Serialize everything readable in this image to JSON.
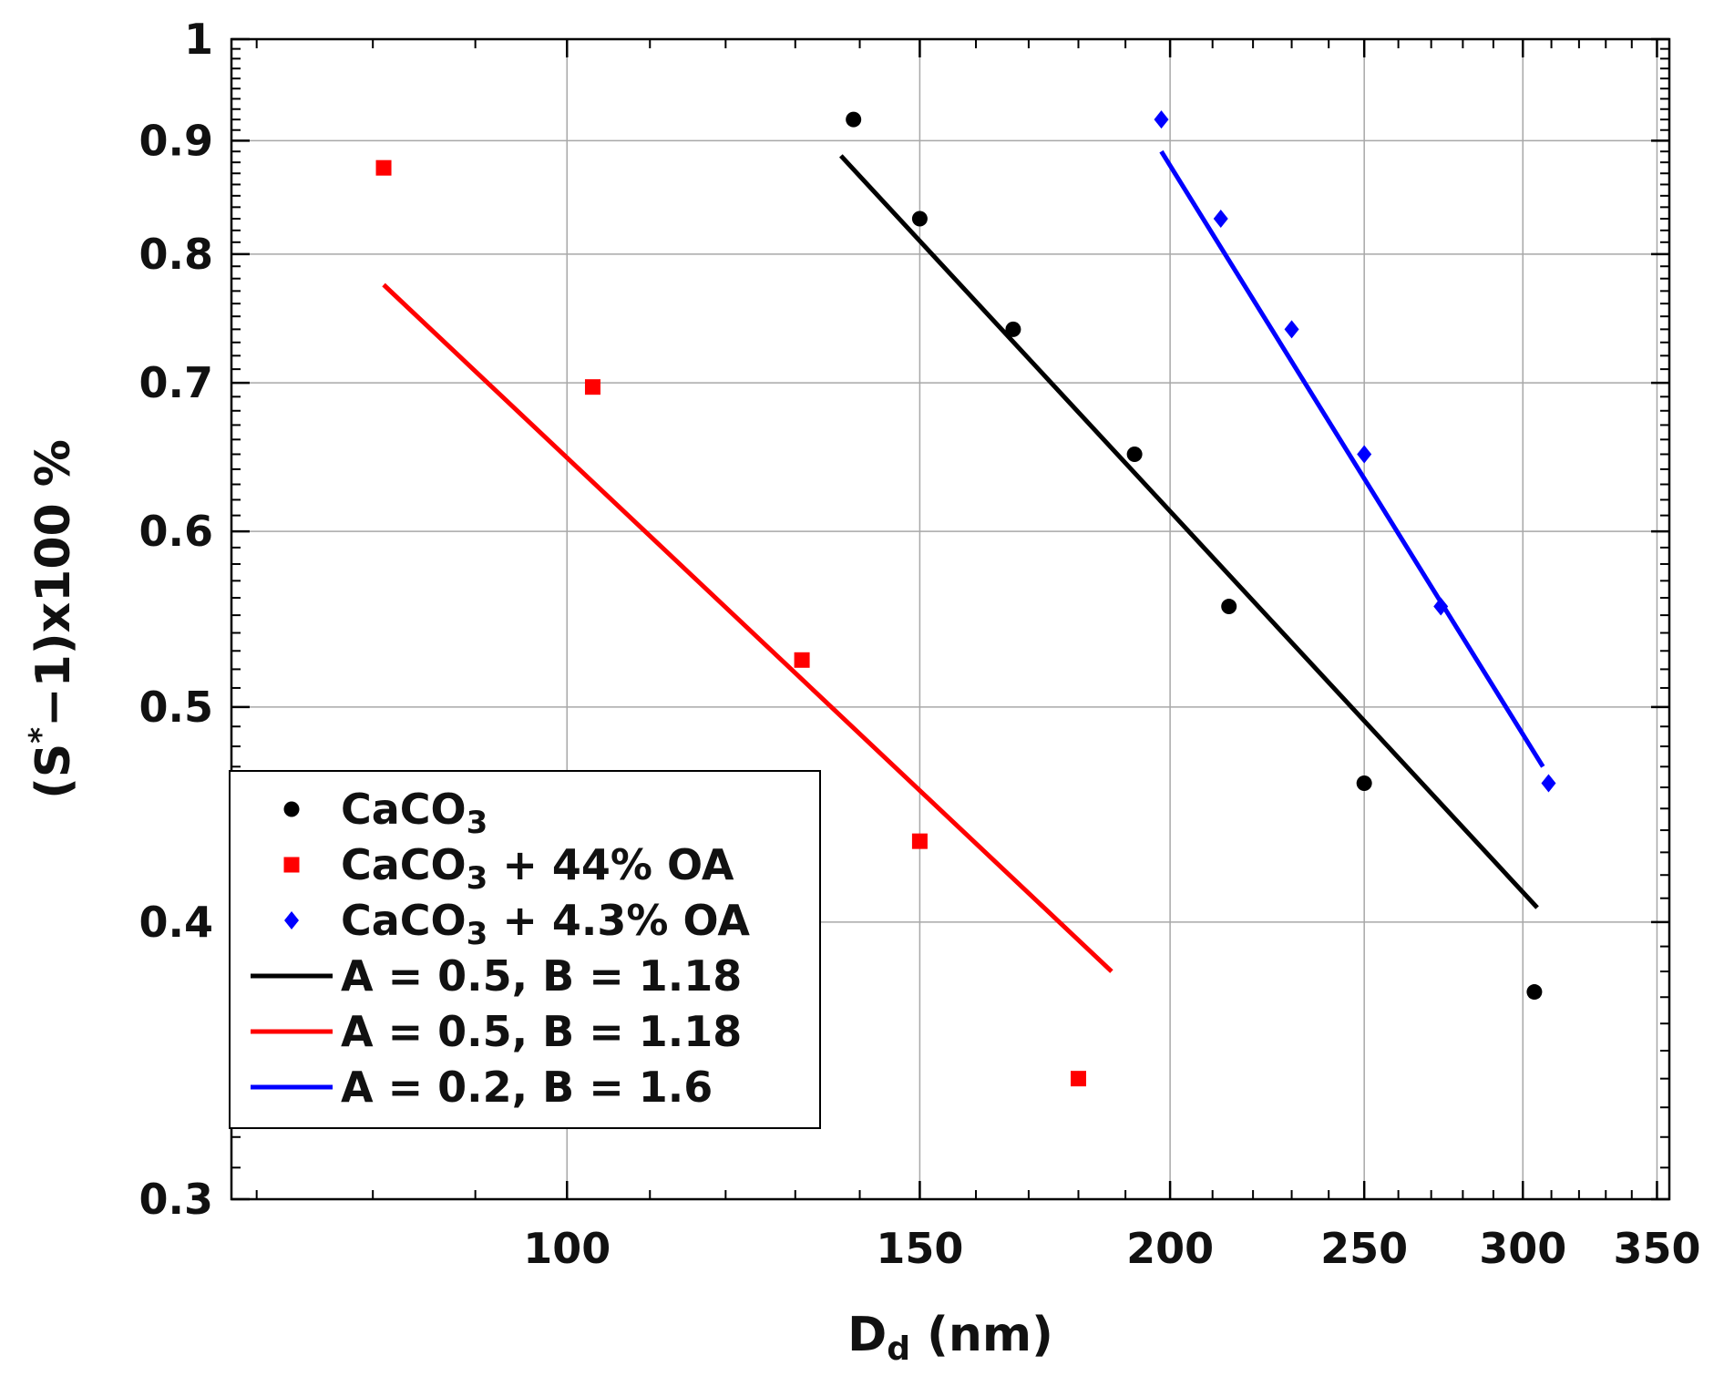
{
  "chart_data": {
    "type": "scatter",
    "x_scale": "log",
    "y_scale": "log",
    "xlim": [
      68,
      355
    ],
    "ylim": [
      0.3,
      1.0
    ],
    "grid": true,
    "legend_position": "bottom-left",
    "xlabel": {
      "main": "D",
      "sub": "d",
      "unit": " (nm)"
    },
    "ylabel": {
      "pre": "(S",
      "sup": "*",
      "post": "−1)x100 %"
    },
    "x_ticks": [
      {
        "value": 100,
        "label": "100"
      },
      {
        "value": 150,
        "label": "150"
      },
      {
        "value": 200,
        "label": "200"
      },
      {
        "value": 250,
        "label": "250"
      },
      {
        "value": 300,
        "label": "300"
      },
      {
        "value": 350,
        "label": "350"
      }
    ],
    "y_ticks": [
      {
        "value": 0.3,
        "label": "0.3"
      },
      {
        "value": 0.4,
        "label": "0.4"
      },
      {
        "value": 0.5,
        "label": "0.5"
      },
      {
        "value": 0.6,
        "label": "0.6"
      },
      {
        "value": 0.7,
        "label": "0.7"
      },
      {
        "value": 0.8,
        "label": "0.8"
      },
      {
        "value": 0.9,
        "label": "0.9"
      },
      {
        "value": 1.0,
        "label": "1"
      }
    ],
    "series": [
      {
        "name": "CaCO3",
        "legend": {
          "pre": "CaCO",
          "sub": "3",
          "post": ""
        },
        "kind": "points",
        "marker": "circle",
        "color": "#000000",
        "points": [
          [
            139,
            0.92
          ],
          [
            150,
            0.83
          ],
          [
            167,
            0.74
          ],
          [
            192,
            0.65
          ],
          [
            214,
            0.555
          ],
          [
            250,
            0.462
          ],
          [
            304,
            0.372
          ]
        ]
      },
      {
        "name": "CaCO3 + 44% OA",
        "legend": {
          "pre": "CaCO",
          "sub": "3",
          "post": " + 44% OA"
        },
        "kind": "points",
        "marker": "square",
        "color": "#ff0000",
        "points": [
          [
            81,
            0.875
          ],
          [
            103,
            0.697
          ],
          [
            131,
            0.525
          ],
          [
            150,
            0.435
          ],
          [
            180,
            0.34
          ]
        ]
      },
      {
        "name": "CaCO3 + 4.3% OA",
        "legend": {
          "pre": "CaCO",
          "sub": "3",
          "post": " + 4.3% OA"
        },
        "kind": "points",
        "marker": "diamond",
        "color": "#0000ff",
        "points": [
          [
            198,
            0.92
          ],
          [
            212,
            0.83
          ],
          [
            230,
            0.74
          ],
          [
            250,
            0.65
          ],
          [
            273,
            0.555
          ],
          [
            309,
            0.462
          ]
        ]
      },
      {
        "name": "A = 0.5, B = 1.18",
        "legend": {
          "pre": "A = 0.5, B = 1.18",
          "sub": "",
          "post": ""
        },
        "kind": "line",
        "color": "#000000",
        "points": [
          [
            137,
            0.886
          ],
          [
            305,
            0.406
          ]
        ]
      },
      {
        "name": "A = 0.5, B = 1.18",
        "legend": {
          "pre": "A = 0.5, B = 1.18",
          "sub": "",
          "post": ""
        },
        "kind": "line",
        "color": "#ff0000",
        "points": [
          [
            81,
            0.775
          ],
          [
            187,
            0.38
          ]
        ]
      },
      {
        "name": "A = 0.2, B = 1.6",
        "legend": {
          "pre": "A = 0.2, B = 1.6",
          "sub": "",
          "post": ""
        },
        "kind": "line",
        "color": "#0000ff",
        "points": [
          [
            198,
            0.89
          ],
          [
            307,
            0.47
          ]
        ]
      }
    ]
  }
}
